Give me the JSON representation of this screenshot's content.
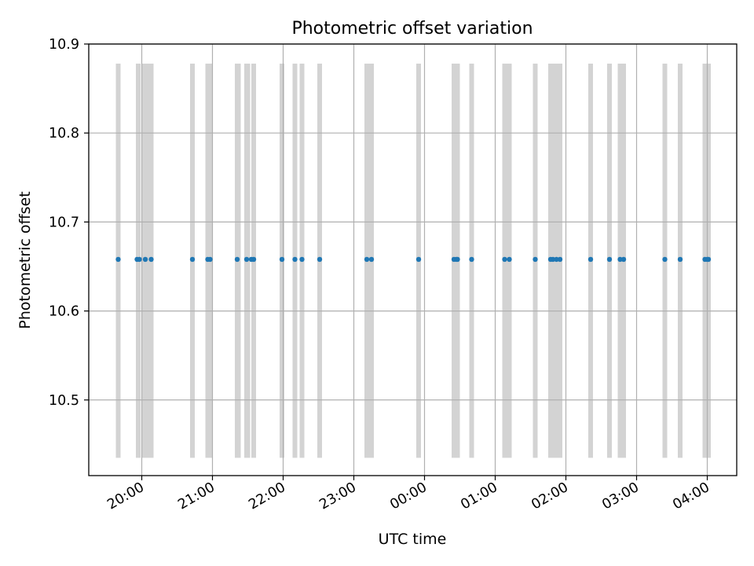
{
  "chart_data": {
    "type": "scatter",
    "title": "Photometric offset variation",
    "xlabel": "UTC time",
    "ylabel": "Photometric offset",
    "x_axis": {
      "scale": "time",
      "ticks": [
        "20:00",
        "21:00",
        "22:00",
        "23:00",
        "00:00",
        "01:00",
        "02:00",
        "03:00",
        "04:00"
      ],
      "range": [
        "19:15",
        "04:25"
      ]
    },
    "ylim": [
      10.415,
      10.9
    ],
    "yticks": [
      "10.5",
      "10.6",
      "10.7",
      "10.8",
      "10.9"
    ],
    "grid": true,
    "series": [
      {
        "marker": "dot",
        "color": "#1f77b4",
        "x": [
          "19:40",
          "19:56",
          "19:58",
          "20:03",
          "20:08",
          "20:43",
          "20:56",
          "20:58",
          "21:21",
          "21:29",
          "21:33",
          "21:35",
          "21:59",
          "22:10",
          "22:16",
          "22:31",
          "23:11",
          "23:15",
          "23:55",
          "00:25",
          "00:27",
          "00:28",
          "00:40",
          "01:08",
          "01:12",
          "01:34",
          "01:47",
          "01:49",
          "01:52",
          "01:55",
          "02:21",
          "02:37",
          "02:46",
          "02:49",
          "03:24",
          "03:37",
          "03:58",
          "04:00",
          "04:01"
        ],
        "y": [
          10.658,
          10.658,
          10.658,
          10.658,
          10.658,
          10.658,
          10.658,
          10.658,
          10.658,
          10.658,
          10.658,
          10.658,
          10.658,
          10.658,
          10.658,
          10.658,
          10.658,
          10.658,
          10.658,
          10.658,
          10.658,
          10.658,
          10.658,
          10.658,
          10.658,
          10.658,
          10.658,
          10.658,
          10.658,
          10.658,
          10.658,
          10.658,
          10.658,
          10.658,
          10.658,
          10.658,
          10.658,
          10.658,
          10.658
        ]
      }
    ],
    "shaded_intervals": {
      "color": "#d3d3d3",
      "y_range": [
        10.435,
        10.878
      ],
      "intervals": [
        [
          "19:38",
          "19:42"
        ],
        [
          "19:55",
          "19:59"
        ],
        [
          "20:00",
          "20:06"
        ],
        [
          "20:06",
          "20:10"
        ],
        [
          "20:41",
          "20:45"
        ],
        [
          "20:54",
          "21:00"
        ],
        [
          "21:19",
          "21:24"
        ],
        [
          "21:27",
          "21:32"
        ],
        [
          "21:33",
          "21:37"
        ],
        [
          "21:57",
          "22:01"
        ],
        [
          "22:08",
          "22:12"
        ],
        [
          "22:14",
          "22:18"
        ],
        [
          "22:29",
          "22:33"
        ],
        [
          "23:09",
          "23:13"
        ],
        [
          "23:13",
          "23:17"
        ],
        [
          "23:53",
          "23:57"
        ],
        [
          "00:23",
          "00:30"
        ],
        [
          "00:38",
          "00:42"
        ],
        [
          "01:06",
          "01:10"
        ],
        [
          "01:10",
          "01:14"
        ],
        [
          "01:32",
          "01:36"
        ],
        [
          "01:45",
          "01:50"
        ],
        [
          "01:50",
          "01:57"
        ],
        [
          "02:19",
          "02:23"
        ],
        [
          "02:35",
          "02:39"
        ],
        [
          "02:44",
          "02:51"
        ],
        [
          "03:22",
          "03:26"
        ],
        [
          "03:35",
          "03:39"
        ],
        [
          "03:56",
          "04:03"
        ]
      ]
    }
  }
}
